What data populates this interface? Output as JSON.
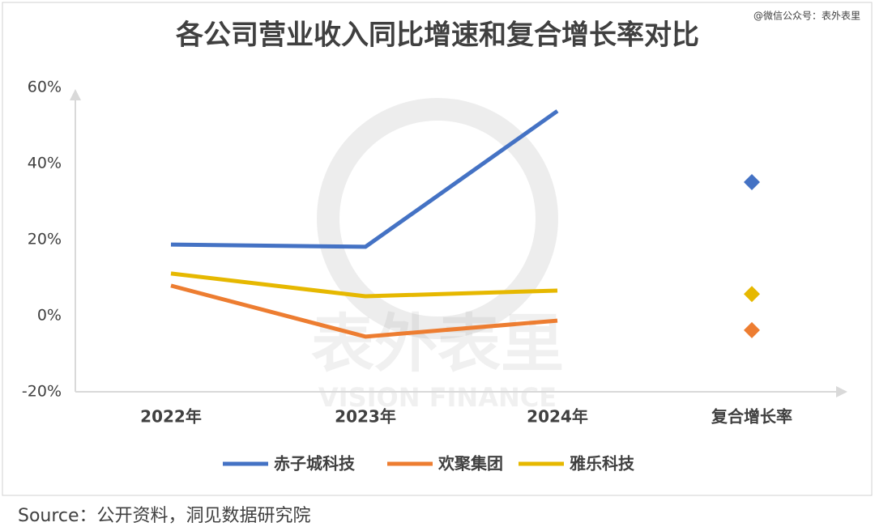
{
  "chart_data": {
    "type": "line",
    "title": "各公司营业收入同比增速和复合增长率对比",
    "watermark": "@微信公众号：表外表里",
    "logo_text": "表外表里",
    "logo_subtext": "VISION FINANCE",
    "source": "Source：公开资料，洞见数据研究院",
    "categories": [
      "2022年",
      "2023年",
      "2024年",
      "复合增长率"
    ],
    "series": [
      {
        "name": "赤子城科技",
        "color": "#4472c4",
        "values": [
          18.7,
          18.1,
          53.8,
          null
        ],
        "cagr": 35.1
      },
      {
        "name": "欢聚集团",
        "color": "#ed7d31",
        "values": [
          7.9,
          -5.5,
          -1.3,
          null
        ],
        "cagr": -3.8
      },
      {
        "name": "雅乐科技",
        "color": "#e6b800",
        "values": [
          11.1,
          5.1,
          6.6,
          null
        ],
        "cagr": 5.7
      }
    ],
    "ylim": [
      -20,
      60
    ],
    "yticks": [
      {
        "value": -20,
        "label": "-20%"
      },
      {
        "value": 0,
        "label": "0%"
      },
      {
        "value": 20,
        "label": "20%"
      },
      {
        "value": 40,
        "label": "40%"
      },
      {
        "value": 60,
        "label": "60%"
      }
    ],
    "grid": false
  }
}
